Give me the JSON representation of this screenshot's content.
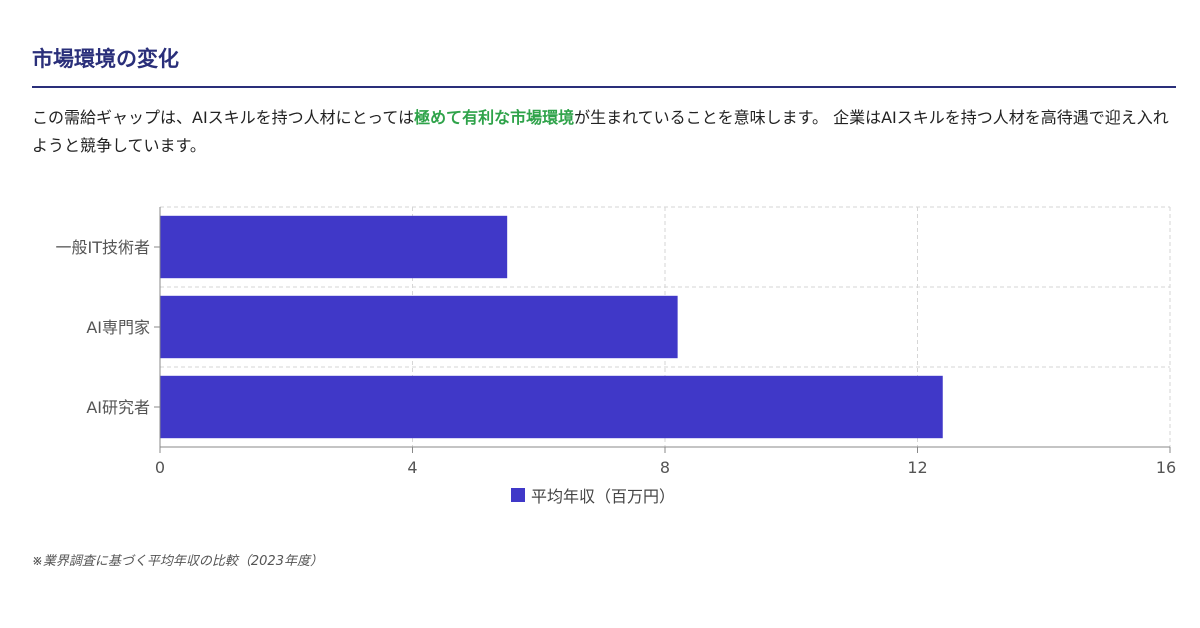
{
  "section": {
    "title": "市場環境の変化",
    "intro_before": "この需給ギャップは、AIスキルを持つ人材にとっては",
    "intro_highlight": "極めて有利な市場環境",
    "intro_after": "が生まれていることを意味します。 企業はAIスキルを持つ人材を高待遇で迎え入れようと競争しています。"
  },
  "colors": {
    "title": "#2a2f7a",
    "highlight": "#2fa34a",
    "bar": "#4038c8"
  },
  "chart_data": {
    "type": "bar",
    "orientation": "horizontal",
    "categories": [
      "一般IT技術者",
      "AI専門家",
      "AI研究者"
    ],
    "series": [
      {
        "name": "平均年収（百万円）",
        "values": [
          5.5,
          8.2,
          12.4
        ]
      }
    ],
    "xlim": [
      0,
      16
    ],
    "x_ticks": [
      0,
      4,
      8,
      12,
      16
    ],
    "grid": true,
    "legend_position": "bottom"
  },
  "footnote": "※業界調査に基づく平均年収の比較（2023年度）"
}
